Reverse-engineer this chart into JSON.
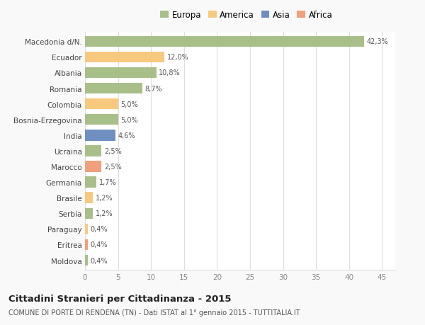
{
  "categories": [
    "Macedonia d/N.",
    "Ecuador",
    "Albania",
    "Romania",
    "Colombia",
    "Bosnia-Erzegovina",
    "India",
    "Ucraina",
    "Marocco",
    "Germania",
    "Brasile",
    "Serbia",
    "Paraguay",
    "Eritrea",
    "Moldova"
  ],
  "values": [
    42.3,
    12.0,
    10.8,
    8.7,
    5.0,
    5.0,
    4.6,
    2.5,
    2.5,
    1.7,
    1.2,
    1.2,
    0.4,
    0.4,
    0.4
  ],
  "labels": [
    "42,3%",
    "12,0%",
    "10,8%",
    "8,7%",
    "5,0%",
    "5,0%",
    "4,6%",
    "2,5%",
    "2,5%",
    "1,7%",
    "1,2%",
    "1,2%",
    "0,4%",
    "0,4%",
    "0,4%"
  ],
  "colors": [
    "#a8bf8a",
    "#f7c97e",
    "#a8bf8a",
    "#a8bf8a",
    "#f7c97e",
    "#a8bf8a",
    "#6e8fbf",
    "#a8bf8a",
    "#f0a07a",
    "#a8bf8a",
    "#f7c97e",
    "#a8bf8a",
    "#f7c97e",
    "#f0a07a",
    "#a8bf8a"
  ],
  "legend_labels": [
    "Europa",
    "America",
    "Asia",
    "Africa"
  ],
  "legend_colors": [
    "#a8bf8a",
    "#f7c97e",
    "#6e8fbf",
    "#f0a07a"
  ],
  "title": "Cittadini Stranieri per Cittadinanza - 2015",
  "subtitle": "COMUNE DI PORTE DI RENDENA (TN) - Dati ISTAT al 1° gennaio 2015 - TUTTITALIA.IT",
  "xlim": [
    0,
    47
  ],
  "xticks": [
    0,
    5,
    10,
    15,
    20,
    25,
    30,
    35,
    40,
    45
  ],
  "background_color": "#f9f9f9",
  "plot_background": "#ffffff",
  "grid_color": "#dddddd"
}
